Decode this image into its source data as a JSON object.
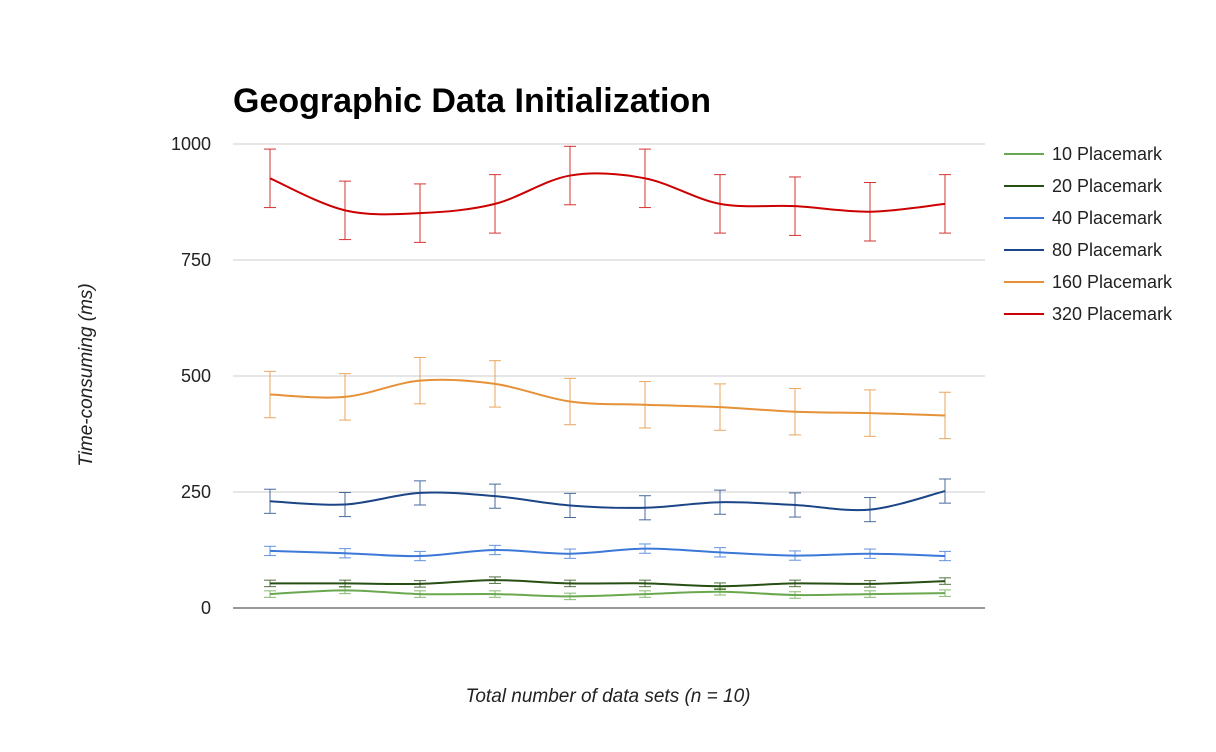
{
  "chart_data": {
    "type": "line",
    "title": "Geographic Data Initialization",
    "xlabel": "Total number of data sets (n = 10)",
    "ylabel": "Time-consuming (ms)",
    "ylim": [
      0,
      1000
    ],
    "yticks": [
      "0",
      "250",
      "500",
      "750",
      "1000"
    ],
    "ytick_values": [
      0,
      250,
      500,
      750,
      1000
    ],
    "x": [
      1,
      2,
      3,
      4,
      5,
      6,
      7,
      8,
      9,
      10
    ],
    "grid": true,
    "legend_position": "right",
    "smooth": true,
    "series": [
      {
        "name": "10 Placemark",
        "color": "#6aa84f",
        "values": [
          30,
          38,
          30,
          30,
          25,
          30,
          35,
          28,
          30,
          32
        ],
        "error": [
          7,
          7,
          7,
          7,
          7,
          7,
          7,
          7,
          7,
          7
        ]
      },
      {
        "name": "20 Placemark",
        "color": "#274e13",
        "values": [
          53,
          53,
          52,
          60,
          53,
          53,
          47,
          53,
          52,
          58
        ],
        "error": [
          7,
          7,
          7,
          7,
          7,
          7,
          7,
          7,
          7,
          7
        ]
      },
      {
        "name": "40 Placemark",
        "color": "#3c78d8",
        "values": [
          123,
          118,
          112,
          125,
          117,
          128,
          120,
          113,
          117,
          112
        ],
        "error": [
          10,
          10,
          10,
          10,
          10,
          10,
          10,
          10,
          10,
          10
        ]
      },
      {
        "name": "80 Placemark",
        "color": "#1c4587",
        "values": [
          230,
          223,
          248,
          241,
          221,
          216,
          228,
          222,
          212,
          252
        ],
        "error": [
          26,
          26,
          26,
          26,
          26,
          26,
          26,
          26,
          26,
          26
        ]
      },
      {
        "name": "160 Placemark",
        "color": "#e69138",
        "values": [
          460,
          455,
          490,
          483,
          445,
          438,
          433,
          423,
          420,
          415
        ],
        "error": [
          50,
          50,
          50,
          50,
          50,
          50,
          50,
          50,
          50,
          50
        ]
      },
      {
        "name": "320 Placemark",
        "color": "#cc0000",
        "values": [
          926,
          857,
          851,
          871,
          932,
          926,
          871,
          866,
          854,
          871
        ],
        "error": [
          63,
          63,
          63,
          63,
          63,
          63,
          63,
          63,
          63,
          63
        ]
      }
    ]
  }
}
